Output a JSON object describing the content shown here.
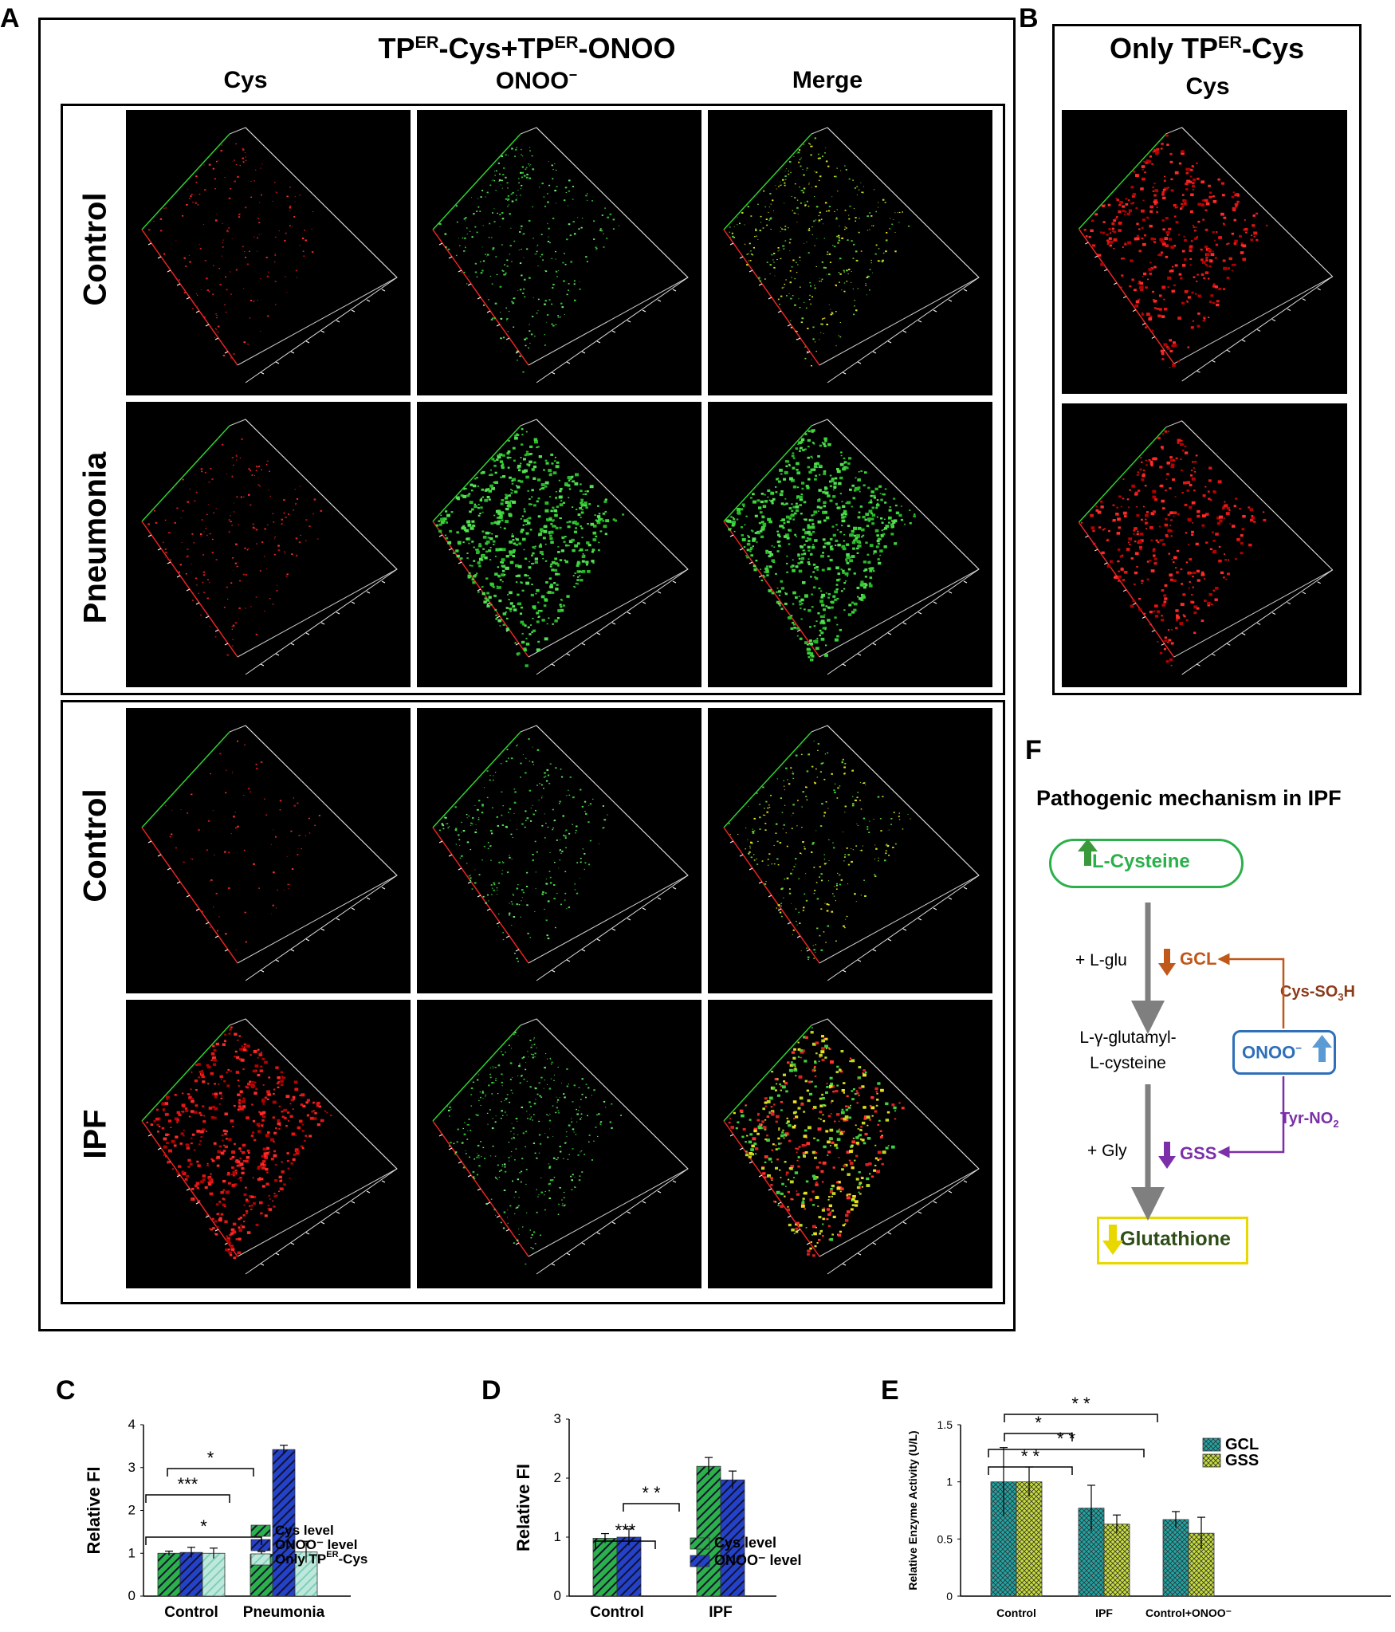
{
  "panels": {
    "A": {
      "letter": "A",
      "title_main": "TP",
      "title_sup1": "ER",
      "title_mid": "-Cys+TP",
      "title_sup2": "ER",
      "title_end": "-ONOO",
      "columns": [
        "Cys",
        "ONOO",
        "Merge"
      ],
      "onoo_sup": "−",
      "rows": [
        "Control",
        "Pneumonia",
        "Control",
        "IPF"
      ]
    },
    "B": {
      "letter": "B",
      "title_main": "Only TP",
      "title_sup": "ER",
      "title_end": "-Cys",
      "column": "Cys"
    },
    "F": {
      "letter": "F",
      "title": "Pathogenic mechanism in IPF",
      "l_cysteine": "L-Cysteine",
      "l_glu": "+ L-glu",
      "gcl": "GCL",
      "cys_so3h": "Cys-SO",
      "cys_so3h_sub": "3",
      "cys_so3h_end": "H",
      "intermediate_1": "L-γ-glutamyl-",
      "intermediate_2": "L-cysteine",
      "onoo": "ONOO",
      "onoo_sup": "−",
      "tyr_no2": "Tyr-NO",
      "tyr_no2_sub": "2",
      "gly": "+ Gly",
      "gss": "GSS",
      "glutathione": "Glutathione",
      "colors": {
        "green": "#2bb04a",
        "orange": "#c0581a",
        "purple": "#7b2fa8",
        "blue": "#2f6fb8",
        "yellow": "#e8d800",
        "gray": "#7f7f7f",
        "darkgreen": "#2e4d17",
        "brown": "#8b3a1a"
      }
    }
  },
  "chart_data": [
    {
      "panel": "C",
      "type": "bar",
      "ylabel": "Relative FI",
      "ylim": [
        0,
        4
      ],
      "yticks": [
        "0",
        "1",
        "2",
        "3",
        "4"
      ],
      "categories": [
        "Control",
        "Pneumonia"
      ],
      "series": [
        {
          "name": "Cys level",
          "values": [
            1.0,
            0.98
          ],
          "errors": [
            0.05,
            0.06
          ],
          "color": "#2bb04a"
        },
        {
          "name": "ONOO⁻ level",
          "values": [
            1.02,
            3.42
          ],
          "errors": [
            0.12,
            0.1
          ],
          "color": "#2442c8"
        },
        {
          "name": "Only TP",
          "name_sup": "ER",
          "name_end": "-Cys",
          "values": [
            1.0,
            1.03
          ],
          "errors": [
            0.12,
            0.25
          ],
          "color": "#bfe8dc"
        }
      ],
      "significance": [
        {
          "label": "*",
          "from": [
            0,
            0
          ],
          "to": [
            1,
            0
          ]
        },
        {
          "label": "***",
          "from": [
            0,
            1
          ],
          "to": [
            1,
            1
          ]
        },
        {
          "label": "*",
          "from": [
            1,
            1
          ],
          "to": [
            1,
            2
          ]
        }
      ]
    },
    {
      "panel": "D",
      "type": "bar",
      "ylabel": "Relative FI",
      "ylim": [
        0,
        3
      ],
      "yticks": [
        "0",
        "1",
        "2",
        "3"
      ],
      "categories": [
        "Control",
        "IPF"
      ],
      "series": [
        {
          "name": "Cys level",
          "values": [
            0.98,
            2.2
          ],
          "errors": [
            0.08,
            0.15
          ],
          "color": "#2bb04a"
        },
        {
          "name": "ONOO⁻ level",
          "values": [
            1.0,
            1.97
          ],
          "errors": [
            0.14,
            0.15
          ],
          "color": "#2442c8"
        }
      ],
      "significance": [
        {
          "label": "***",
          "from": [
            0,
            0
          ],
          "to": [
            1,
            0
          ]
        },
        {
          "label": "* *",
          "from": [
            0,
            1
          ],
          "to": [
            1,
            1
          ]
        }
      ]
    },
    {
      "panel": "E",
      "type": "bar",
      "ylabel": "Relative Enzyme Activity (U/L)",
      "ylim": [
        0,
        1.5
      ],
      "yticks": [
        "0",
        "0.5",
        "1",
        "1.5"
      ],
      "categories": [
        "Control",
        "IPF",
        "Control+ONOO⁻"
      ],
      "series": [
        {
          "name": "GCL",
          "values": [
            1.0,
            0.77,
            0.67
          ],
          "errors": [
            0.3,
            0.2,
            0.07
          ],
          "color": "#1fa6a6"
        },
        {
          "name": "GSS",
          "values": [
            1.0,
            0.63,
            0.55
          ],
          "errors": [
            0.13,
            0.08,
            0.14
          ],
          "color": "#c8de3c"
        }
      ],
      "significance": [
        {
          "label": "* *",
          "pair": [
            0,
            1
          ]
        },
        {
          "label": "* *",
          "pair": [
            0,
            2
          ]
        },
        {
          "label": "*",
          "pair": [
            0,
            1
          ]
        },
        {
          "label": "* *",
          "pair": [
            0,
            2
          ]
        }
      ]
    }
  ]
}
